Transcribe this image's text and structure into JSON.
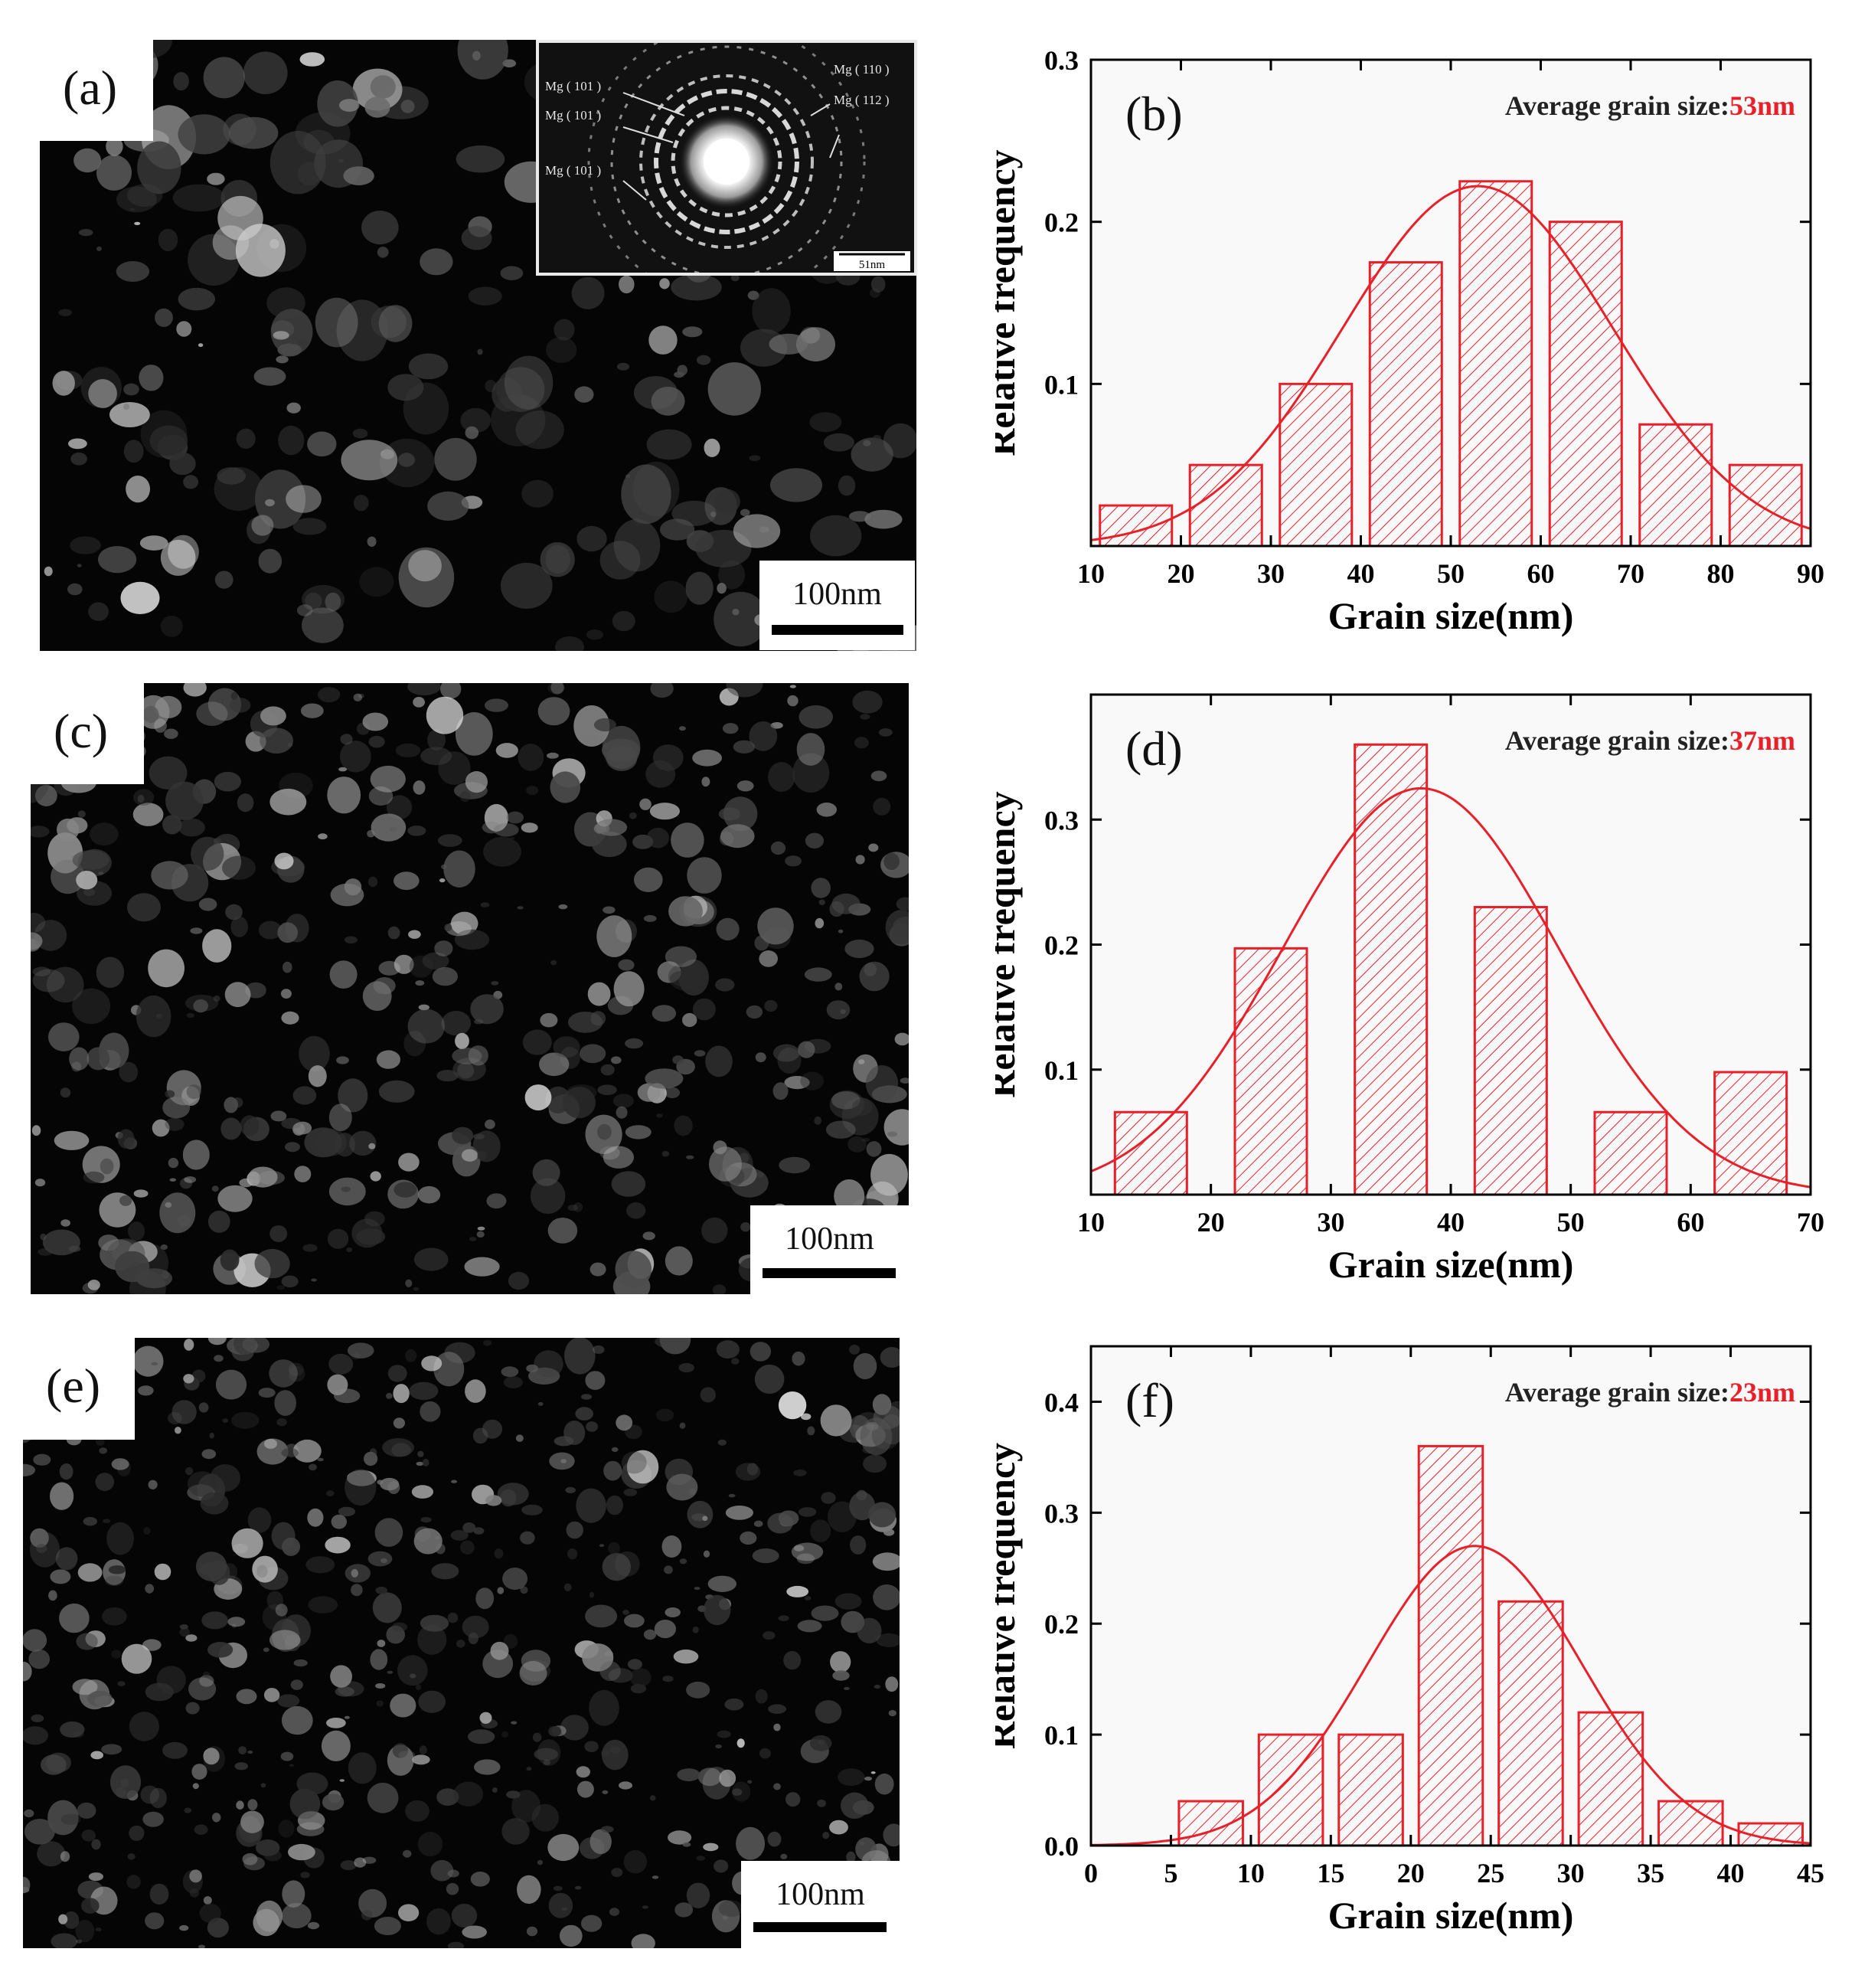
{
  "panel_labels": {
    "a": "(a)",
    "b": "(b)",
    "c": "(c)",
    "d": "(d)",
    "e": "(e)",
    "f": "(f)"
  },
  "micrographs": [
    {
      "label": "(a)",
      "scale_bar": "100nm"
    },
    {
      "label": "(c)",
      "scale_bar": "100nm"
    },
    {
      "label": "(e)",
      "scale_bar": "100nm"
    }
  ],
  "saed_inset": {
    "ring_labels_left": [
      "Mg ( 101 )",
      "Mg ( 101 )",
      "Mg ( 101 )"
    ],
    "ring_labels_right": [
      "Mg ( 110 )",
      "Mg ( 112 )"
    ],
    "scale_bar": "51nm"
  },
  "colors": {
    "accent": "#e8202a",
    "hatch": "#e8202a",
    "axis": "#000000",
    "micrograph_bg": "#050505",
    "chart_bg": "#f9f9f9"
  },
  "chart_data": [
    {
      "type": "bar",
      "panel": "(b)",
      "annotation_prefix": "Average grain size:",
      "annotation_value": "53nm",
      "xlabel": "Grain size(nm)",
      "ylabel": "Relative frequency",
      "xlim": [
        10,
        90
      ],
      "ylim": [
        0,
        0.3
      ],
      "xticks": [
        10,
        20,
        30,
        40,
        50,
        60,
        70,
        80,
        90
      ],
      "yticks": [
        0.1,
        0.2,
        0.3
      ],
      "ytick_labels": [
        "0.1",
        "0.2",
        "0.3"
      ],
      "bins": [
        {
          "start": 11,
          "end": 19,
          "value": 0.025
        },
        {
          "start": 21,
          "end": 29,
          "value": 0.05
        },
        {
          "start": 31,
          "end": 39,
          "value": 0.1
        },
        {
          "start": 41,
          "end": 49,
          "value": 0.175
        },
        {
          "start": 51,
          "end": 59,
          "value": 0.225
        },
        {
          "start": 61,
          "end": 69,
          "value": 0.2
        },
        {
          "start": 71,
          "end": 79,
          "value": 0.075
        },
        {
          "start": 81,
          "end": 89,
          "value": 0.05
        }
      ],
      "fit": {
        "type": "gaussian",
        "mean": 53,
        "sigma": 15,
        "peak": 0.222
      }
    },
    {
      "type": "bar",
      "panel": "(d)",
      "annotation_prefix": "Average grain size:",
      "annotation_value": "37nm",
      "xlabel": "Grain size(nm)",
      "ylabel": "Relative frequency",
      "xlim": [
        10,
        70
      ],
      "ylim": [
        0,
        0.4
      ],
      "xticks": [
        10,
        20,
        30,
        40,
        50,
        60,
        70
      ],
      "yticks": [
        0.1,
        0.2,
        0.3
      ],
      "ytick_labels": [
        "0.1",
        "0.2",
        "0.3"
      ],
      "bins": [
        {
          "start": 12,
          "end": 18,
          "value": 0.066
        },
        {
          "start": 22,
          "end": 28,
          "value": 0.197
        },
        {
          "start": 32,
          "end": 38,
          "value": 0.36
        },
        {
          "start": 42,
          "end": 48,
          "value": 0.23
        },
        {
          "start": 52,
          "end": 58,
          "value": 0.066
        },
        {
          "start": 62,
          "end": 68,
          "value": 0.098
        }
      ],
      "fit": {
        "type": "gaussian",
        "mean": 37.5,
        "sigma": 11.5,
        "peak": 0.325
      }
    },
    {
      "type": "bar",
      "panel": "(f)",
      "annotation_prefix": "Average grain size:",
      "annotation_value": "23nm",
      "xlabel": "Grain size(nm)",
      "ylabel": "Relative frequency",
      "xlim": [
        0,
        45
      ],
      "ylim": [
        0,
        0.45
      ],
      "xticks": [
        0,
        5,
        10,
        15,
        20,
        25,
        30,
        35,
        40,
        45
      ],
      "yticks": [
        0.0,
        0.1,
        0.2,
        0.3,
        0.4
      ],
      "ytick_labels": [
        "0.0",
        "0.1",
        "0.2",
        "0.3",
        "0.4"
      ],
      "bins": [
        {
          "start": 5.5,
          "end": 9.5,
          "value": 0.04
        },
        {
          "start": 10.5,
          "end": 14.5,
          "value": 0.1
        },
        {
          "start": 15.5,
          "end": 19.5,
          "value": 0.1
        },
        {
          "start": 20.5,
          "end": 24.5,
          "value": 0.36
        },
        {
          "start": 25.5,
          "end": 29.5,
          "value": 0.22
        },
        {
          "start": 30.5,
          "end": 34.5,
          "value": 0.12
        },
        {
          "start": 35.5,
          "end": 39.5,
          "value": 0.04
        },
        {
          "start": 40.5,
          "end": 44.5,
          "value": 0.02
        }
      ],
      "fit": {
        "type": "gaussian",
        "mean": 24,
        "sigma": 6.7,
        "peak": 0.27
      }
    }
  ]
}
